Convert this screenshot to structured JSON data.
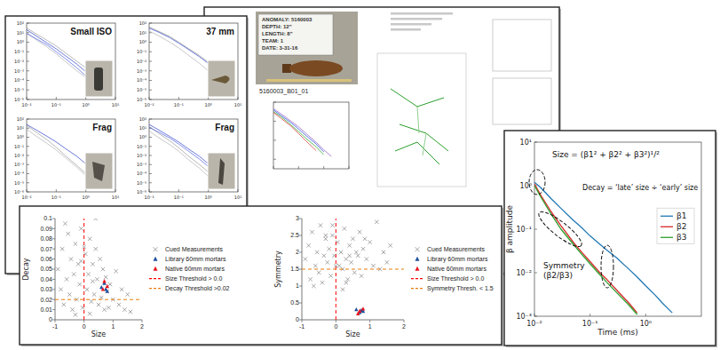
{
  "chart_data": [
    {
      "type": "line",
      "title": "Small ISO",
      "log": true,
      "x": [
        0.01,
        0.02,
        0.05,
        0.1,
        0.2,
        0.5,
        1,
        2,
        5
      ],
      "xlim": [
        0.01,
        10
      ],
      "xticks": [
        {
          "value": 0.01,
          "label": "10⁻²"
        },
        {
          "value": 0.1,
          "label": "10⁻¹"
        },
        {
          "value": 1,
          "label": "10⁰"
        },
        {
          "value": 10,
          "label": "10¹"
        }
      ],
      "ylim": [
        1e-06,
        100
      ],
      "yticks": [
        {
          "value": 1e-06,
          "label": "10⁻⁶"
        },
        {
          "value": 1e-05,
          "label": "10⁻⁵"
        },
        {
          "value": 0.0001,
          "label": "10⁻⁴"
        },
        {
          "value": 0.001,
          "label": "10⁻³"
        },
        {
          "value": 0.01,
          "label": "10⁻²"
        },
        {
          "value": 0.1,
          "label": "10⁻¹"
        },
        {
          "value": 1,
          "label": "10⁰"
        },
        {
          "value": 10,
          "label": "10¹"
        },
        {
          "value": 100,
          "label": "10²"
        }
      ],
      "series": [
        {
          "color": "#9a9a9a",
          "values": [
            30,
            8,
            1.5,
            0.4,
            0.08,
            0.01,
            0.002,
            0.0003,
            2e-05
          ]
        },
        {
          "color": "#b0b0b0",
          "values": [
            10,
            2,
            0.3,
            0.06,
            0.01,
            0.001,
            0.0002,
            3e-05,
            3e-06
          ]
        },
        {
          "color": "#2b3fc9",
          "values": [
            20,
            5,
            0.8,
            0.2,
            0.04,
            0.005,
            0.0008,
            0.0001,
            1e-05
          ]
        },
        {
          "color": "#4a5be0",
          "values": [
            8,
            2.5,
            0.5,
            0.1,
            0.02,
            0.002,
            0.0003,
            4e-05,
            4e-06
          ]
        }
      ]
    },
    {
      "type": "line",
      "title": "37 mm",
      "log": true,
      "x": [
        0.01,
        0.02,
        0.05,
        0.1,
        0.2,
        0.5,
        1,
        2,
        5
      ],
      "xlim": [
        0.01,
        10
      ],
      "xticks": [
        {
          "value": 0.01,
          "label": "10⁻²"
        },
        {
          "value": 0.1,
          "label": "10⁻¹"
        },
        {
          "value": 1,
          "label": "10⁰"
        },
        {
          "value": 10,
          "label": "10¹"
        }
      ],
      "ylim": [
        1e-06,
        100
      ],
      "yticks": [
        {
          "value": 1e-06,
          "label": "10⁻⁶"
        },
        {
          "value": 1e-05,
          "label": "10⁻⁵"
        },
        {
          "value": 0.0001,
          "label": "10⁻⁴"
        },
        {
          "value": 0.001,
          "label": "10⁻³"
        },
        {
          "value": 0.01,
          "label": "10⁻²"
        },
        {
          "value": 0.1,
          "label": "10⁻¹"
        },
        {
          "value": 1,
          "label": "10⁰"
        },
        {
          "value": 10,
          "label": "10¹"
        },
        {
          "value": 100,
          "label": "10²"
        }
      ],
      "series": [
        {
          "color": "#9a9a9a",
          "values": [
            40,
            15,
            4,
            1,
            0.25,
            0.04,
            0.008,
            0.0015,
            0.0001
          ]
        },
        {
          "color": "#b0b0b0",
          "values": [
            15,
            5,
            1,
            0.25,
            0.05,
            0.006,
            0.001,
            0.0002,
            2e-05
          ]
        },
        {
          "color": "#2b3fc9",
          "values": [
            30,
            12,
            3,
            0.8,
            0.2,
            0.03,
            0.006,
            0.001,
            0.0001
          ]
        }
      ]
    },
    {
      "type": "line",
      "title": "Frag",
      "log": true,
      "x": [
        0.01,
        0.02,
        0.05,
        0.1,
        0.2,
        0.5,
        1,
        2,
        5
      ],
      "xlim": [
        0.01,
        10
      ],
      "xticks": [
        {
          "value": 0.01,
          "label": "10⁻²"
        },
        {
          "value": 0.1,
          "label": "10⁻¹"
        },
        {
          "value": 1,
          "label": "10⁰"
        },
        {
          "value": 10,
          "label": "10¹"
        }
      ],
      "ylim": [
        1e-06,
        100
      ],
      "yticks": [
        {
          "value": 1e-06,
          "label": "10⁻⁶"
        },
        {
          "value": 1e-05,
          "label": "10⁻⁵"
        },
        {
          "value": 0.0001,
          "label": "10⁻⁴"
        },
        {
          "value": 0.001,
          "label": "10⁻³"
        },
        {
          "value": 0.01,
          "label": "10⁻²"
        },
        {
          "value": 0.1,
          "label": "10⁻¹"
        },
        {
          "value": 1,
          "label": "10⁰"
        },
        {
          "value": 10,
          "label": "10¹"
        },
        {
          "value": 100,
          "label": "10²"
        }
      ],
      "series": [
        {
          "color": "#9a9a9a",
          "values": [
            20,
            4,
            0.5,
            0.08,
            0.01,
            0.0008,
            0.0001,
            1e-05,
            null
          ]
        },
        {
          "color": "#b0b0b0",
          "values": [
            8,
            1.5,
            0.2,
            0.04,
            0.006,
            0.0005,
            6e-05,
            null,
            null
          ]
        },
        {
          "color": "#2b3fc9",
          "values": [
            25,
            7,
            1.2,
            0.3,
            0.06,
            0.008,
            0.0012,
            0.0002,
            2e-05
          ]
        }
      ]
    },
    {
      "type": "line",
      "title": "Frag",
      "log": true,
      "x": [
        0.01,
        0.02,
        0.05,
        0.1,
        0.2,
        0.5,
        1,
        2,
        5
      ],
      "xlim": [
        0.01,
        10
      ],
      "xticks": [
        {
          "value": 0.01,
          "label": "10⁻²"
        },
        {
          "value": 0.1,
          "label": "10⁻¹"
        },
        {
          "value": 1,
          "label": "10⁰"
        },
        {
          "value": 10,
          "label": "10¹"
        }
      ],
      "ylim": [
        1e-06,
        100
      ],
      "yticks": [
        {
          "value": 1e-06,
          "label": "10⁻⁶"
        },
        {
          "value": 1e-05,
          "label": "10⁻⁵"
        },
        {
          "value": 0.0001,
          "label": "10⁻⁴"
        },
        {
          "value": 0.001,
          "label": "10⁻³"
        },
        {
          "value": 0.01,
          "label": "10⁻²"
        },
        {
          "value": 0.1,
          "label": "10⁻¹"
        },
        {
          "value": 1,
          "label": "10⁰"
        },
        {
          "value": 10,
          "label": "10¹"
        },
        {
          "value": 100,
          "label": "10²"
        }
      ],
      "series": [
        {
          "color": "#9a9a9a",
          "values": [
            15,
            3,
            0.4,
            0.07,
            0.01,
            0.001,
            0.00015,
            2e-05,
            null
          ]
        },
        {
          "color": "#b0b0b0",
          "values": [
            5,
            1,
            0.15,
            0.03,
            0.004,
            0.0004,
            5e-05,
            null,
            null
          ]
        },
        {
          "color": "#2b3fc9",
          "values": [
            25,
            7,
            1.2,
            0.3,
            0.06,
            0.008,
            0.0012,
            0.0002,
            2e-05
          ]
        },
        {
          "color": "#4a5be0",
          "values": [
            12,
            4,
            0.8,
            0.18,
            0.035,
            0.004,
            0.0006,
            0.0001,
            1e-05
          ]
        }
      ]
    },
    {
      "type": "line",
      "log": true,
      "tick_labels": false,
      "x": [
        0.01,
        0.02,
        0.05,
        0.1,
        0.2,
        0.5,
        1,
        2,
        5
      ],
      "xlim": [
        0.01,
        10
      ],
      "xticks": [
        0.01,
        0.1,
        1,
        10
      ],
      "ylim": [
        1e-05,
        100
      ],
      "yticks": [
        0.0001,
        0.01,
        1,
        100
      ],
      "series": [
        {
          "color": "#9966cc",
          "values": [
            20,
            6,
            1,
            0.25,
            0.05,
            0.006,
            0.001,
            0.0002,
            null
          ]
        },
        {
          "color": "#3355dd",
          "values": [
            15,
            4,
            0.7,
            0.15,
            0.03,
            0.004,
            0.0006,
            null,
            null
          ]
        },
        {
          "color": "#33aa33",
          "values": [
            10,
            3,
            0.4,
            0.08,
            0.015,
            0.002,
            0.0003,
            null,
            null
          ]
        },
        {
          "color": "#dd4444",
          "values": [
            8,
            2,
            0.3,
            0.05,
            0.008,
            0.0008,
            null,
            null,
            null
          ]
        }
      ]
    },
    {
      "type": "scatter",
      "xlabel": "Size",
      "ylabel": "Decay",
      "xlim": [
        -1,
        2
      ],
      "xticks": [
        -1,
        0,
        1,
        2
      ],
      "ylim": [
        0,
        0.1
      ],
      "yticks": [
        0,
        0.01,
        0.02,
        0.03,
        0.04,
        0.05,
        0.06,
        0.07,
        0.08,
        0.09,
        0.1
      ],
      "legend": "right",
      "series": [
        {
          "name": "Cued Measurements",
          "color": "#808080",
          "marker": "x",
          "x": [
            -0.9,
            -0.8,
            -0.75,
            -0.7,
            -0.6,
            -0.55,
            -0.5,
            -0.45,
            -0.4,
            -0.35,
            -0.3,
            -0.25,
            -0.2,
            -0.15,
            -0.1,
            -0.05,
            0.05,
            0.1,
            0.15,
            0.2,
            0.25,
            0.3,
            0.35,
            0.4,
            0.45,
            0.5,
            0.55,
            0.6,
            0.65,
            0.7,
            0.75,
            0.8,
            0.9,
            1.0,
            1.1,
            1.2,
            1.3,
            1.4,
            1.5,
            1.6,
            -0.65,
            -0.3,
            0.2,
            0.4,
            -0.1,
            0,
            0.3,
            0.85
          ],
          "values": [
            0.05,
            0.03,
            0.07,
            0.015,
            0.04,
            0.085,
            0.025,
            0.06,
            0.01,
            0.045,
            0.075,
            0.02,
            0.055,
            0.035,
            0.09,
            0.012,
            0.065,
            0.03,
            0.045,
            0.08,
            0.018,
            0.055,
            0.025,
            0.07,
            0.04,
            0.015,
            0.06,
            0.022,
            0.05,
            0.01,
            0.042,
            0.028,
            0.035,
            0.02,
            0.048,
            0.015,
            0.03,
            0.01,
            0.025,
            0.008,
            0.095,
            0.005,
            0.006,
            0.1,
            0.058,
            0.072,
            0.038,
            0.012
          ]
        },
        {
          "name": "Library 60mm mortars",
          "color": "#1f4e9c",
          "marker": "triangle",
          "x": [
            0.6,
            0.7,
            0.75,
            0.8
          ],
          "values": [
            0.032,
            0.036,
            0.03,
            0.028
          ]
        },
        {
          "name": "Native 60mm mortars",
          "color": "#e8141c",
          "marker": "triangle",
          "x": [
            0.65,
            0.7,
            0.8
          ],
          "values": [
            0.03,
            0.038,
            0.033
          ]
        },
        {
          "name": "Size Threshold > 0.0",
          "type": "line",
          "color": "#ff0000",
          "line_style": "dashed",
          "x": [
            0,
            0
          ],
          "values": [
            0,
            0.1
          ]
        },
        {
          "name": "Decay Threshold >0.02",
          "type": "line",
          "color": "#e87d0e",
          "line_style": "dashed",
          "x": [
            -1,
            2
          ],
          "values": [
            0.02,
            0.02
          ]
        }
      ]
    },
    {
      "type": "scatter",
      "xlabel": "Size",
      "ylabel": "Symmetry",
      "xlim": [
        -1,
        2
      ],
      "xticks": [
        -1,
        0,
        1,
        2
      ],
      "ylim": [
        0,
        3
      ],
      "yticks": [
        0,
        0.5,
        1,
        1.5,
        2,
        2.5,
        3
      ],
      "legend": "right",
      "series": [
        {
          "name": "Cued Measurements",
          "color": "#808080",
          "marker": "x",
          "x": [
            -0.9,
            -0.8,
            -0.75,
            -0.7,
            -0.6,
            -0.55,
            -0.5,
            -0.45,
            -0.4,
            -0.35,
            -0.3,
            -0.25,
            -0.2,
            -0.15,
            -0.1,
            -0.05,
            0.05,
            0.1,
            0.15,
            0.2,
            0.25,
            0.3,
            0.35,
            0.4,
            0.45,
            0.5,
            0.55,
            0.6,
            0.65,
            0.7,
            0.75,
            0.8,
            0.9,
            1.0,
            1.1,
            1.2,
            1.3,
            1.4,
            1.5,
            1.6,
            -0.65,
            -0.3,
            0.2,
            0.4,
            -0.1,
            0,
            0.3,
            0.85
          ],
          "values": [
            1.8,
            2.2,
            1.2,
            2.6,
            1.6,
            2.0,
            1.4,
            2.8,
            1.1,
            1.9,
            2.4,
            1.7,
            2.1,
            1.3,
            2.5,
            1.9,
            2.3,
            1.6,
            2.0,
            1.5,
            2.7,
            1.8,
            1.2,
            2.2,
            1.7,
            2.4,
            1.4,
            2.0,
            1.9,
            2.6,
            1.3,
            2.1,
            1.8,
            2.3,
            1.6,
            2.9,
            1.5,
            2.0,
            1.7,
            2.2,
            1.0,
            2.5,
            0.9,
            1.9,
            2.8,
            1.6,
            1.1,
            2.4
          ]
        },
        {
          "name": "Library 60mm mortars",
          "color": "#1f4e9c",
          "marker": "triangle",
          "x": [
            0.6,
            0.7,
            0.75,
            0.8
          ],
          "values": [
            0.3,
            0.22,
            0.28,
            0.25
          ]
        },
        {
          "name": "Native 60mm mortars",
          "color": "#e8141c",
          "marker": "triangle",
          "x": [
            0.65,
            0.7,
            0.8
          ],
          "values": [
            0.18,
            0.26,
            0.32
          ]
        },
        {
          "name": "Size Threshold > 0.0",
          "type": "line",
          "color": "#ff0000",
          "line_style": "dashed",
          "x": [
            0,
            0
          ],
          "values": [
            0,
            3
          ]
        },
        {
          "name": "Symmetry Thresh. < 1.5",
          "type": "line",
          "color": "#e87d0e",
          "line_style": "dashed",
          "x": [
            -1,
            2
          ],
          "values": [
            1.5,
            1.5
          ]
        }
      ]
    },
    {
      "type": "line",
      "log": true,
      "xlabel": "Time (ms)",
      "ylabel": "β amplitude",
      "x": [
        0.01,
        0.013,
        0.02,
        0.03,
        0.05,
        0.07,
        0.1,
        0.15,
        0.2,
        0.3,
        0.5,
        0.7,
        1,
        1.5,
        2,
        3
      ],
      "xlim": [
        0.01,
        10
      ],
      "xticks": [
        {
          "value": 0.01,
          "label": "10⁻²"
        },
        {
          "value": 0.1,
          "label": "10⁻¹"
        },
        {
          "value": 1,
          "label": "10⁰"
        }
      ],
      "ylim": [
        0.001,
        10
      ],
      "yticks": [
        {
          "value": 0.001,
          "label": "10⁻³"
        },
        {
          "value": 0.01,
          "label": "10⁻²"
        },
        {
          "value": 0.1,
          "label": "10⁻¹"
        },
        {
          "value": 1,
          "label": "10⁰"
        },
        {
          "value": 10,
          "label": "10¹"
        }
      ],
      "legend": "center right",
      "annotations": [
        "Size = (β1² + β2² + β3²)¹/²",
        "Decay = ‘late’ size ÷ ‘early’ size",
        "Symmetry",
        "(β2/β3)"
      ],
      "series": [
        {
          "name": "β1",
          "color": "#1f77b4",
          "values": [
            1.2,
            0.9,
            0.5,
            0.3,
            0.16,
            0.11,
            0.07,
            0.045,
            0.033,
            0.022,
            0.012,
            0.008,
            0.005,
            0.003,
            0.002,
            0.0012
          ]
        },
        {
          "name": "β2",
          "color": "#d62728",
          "values": [
            1.1,
            0.6,
            0.25,
            0.12,
            0.05,
            0.03,
            0.018,
            0.01,
            0.007,
            0.004,
            0.002,
            0.0012,
            null,
            null,
            null,
            null
          ]
        },
        {
          "name": "β3",
          "color": "#2ca02c",
          "values": [
            1.0,
            0.55,
            0.22,
            0.1,
            0.045,
            0.027,
            0.016,
            0.009,
            0.006,
            0.0035,
            0.0018,
            0.0011,
            null,
            null,
            null,
            null
          ]
        }
      ]
    }
  ],
  "photo_card": {
    "lines": [
      "ANOMALY: 5160003",
      "DEPTH: 12\"",
      "LENGTH: 8\"",
      "TEAM: 1",
      "DATE: 3-31-16"
    ],
    "caption": "5160003_B01_01"
  }
}
